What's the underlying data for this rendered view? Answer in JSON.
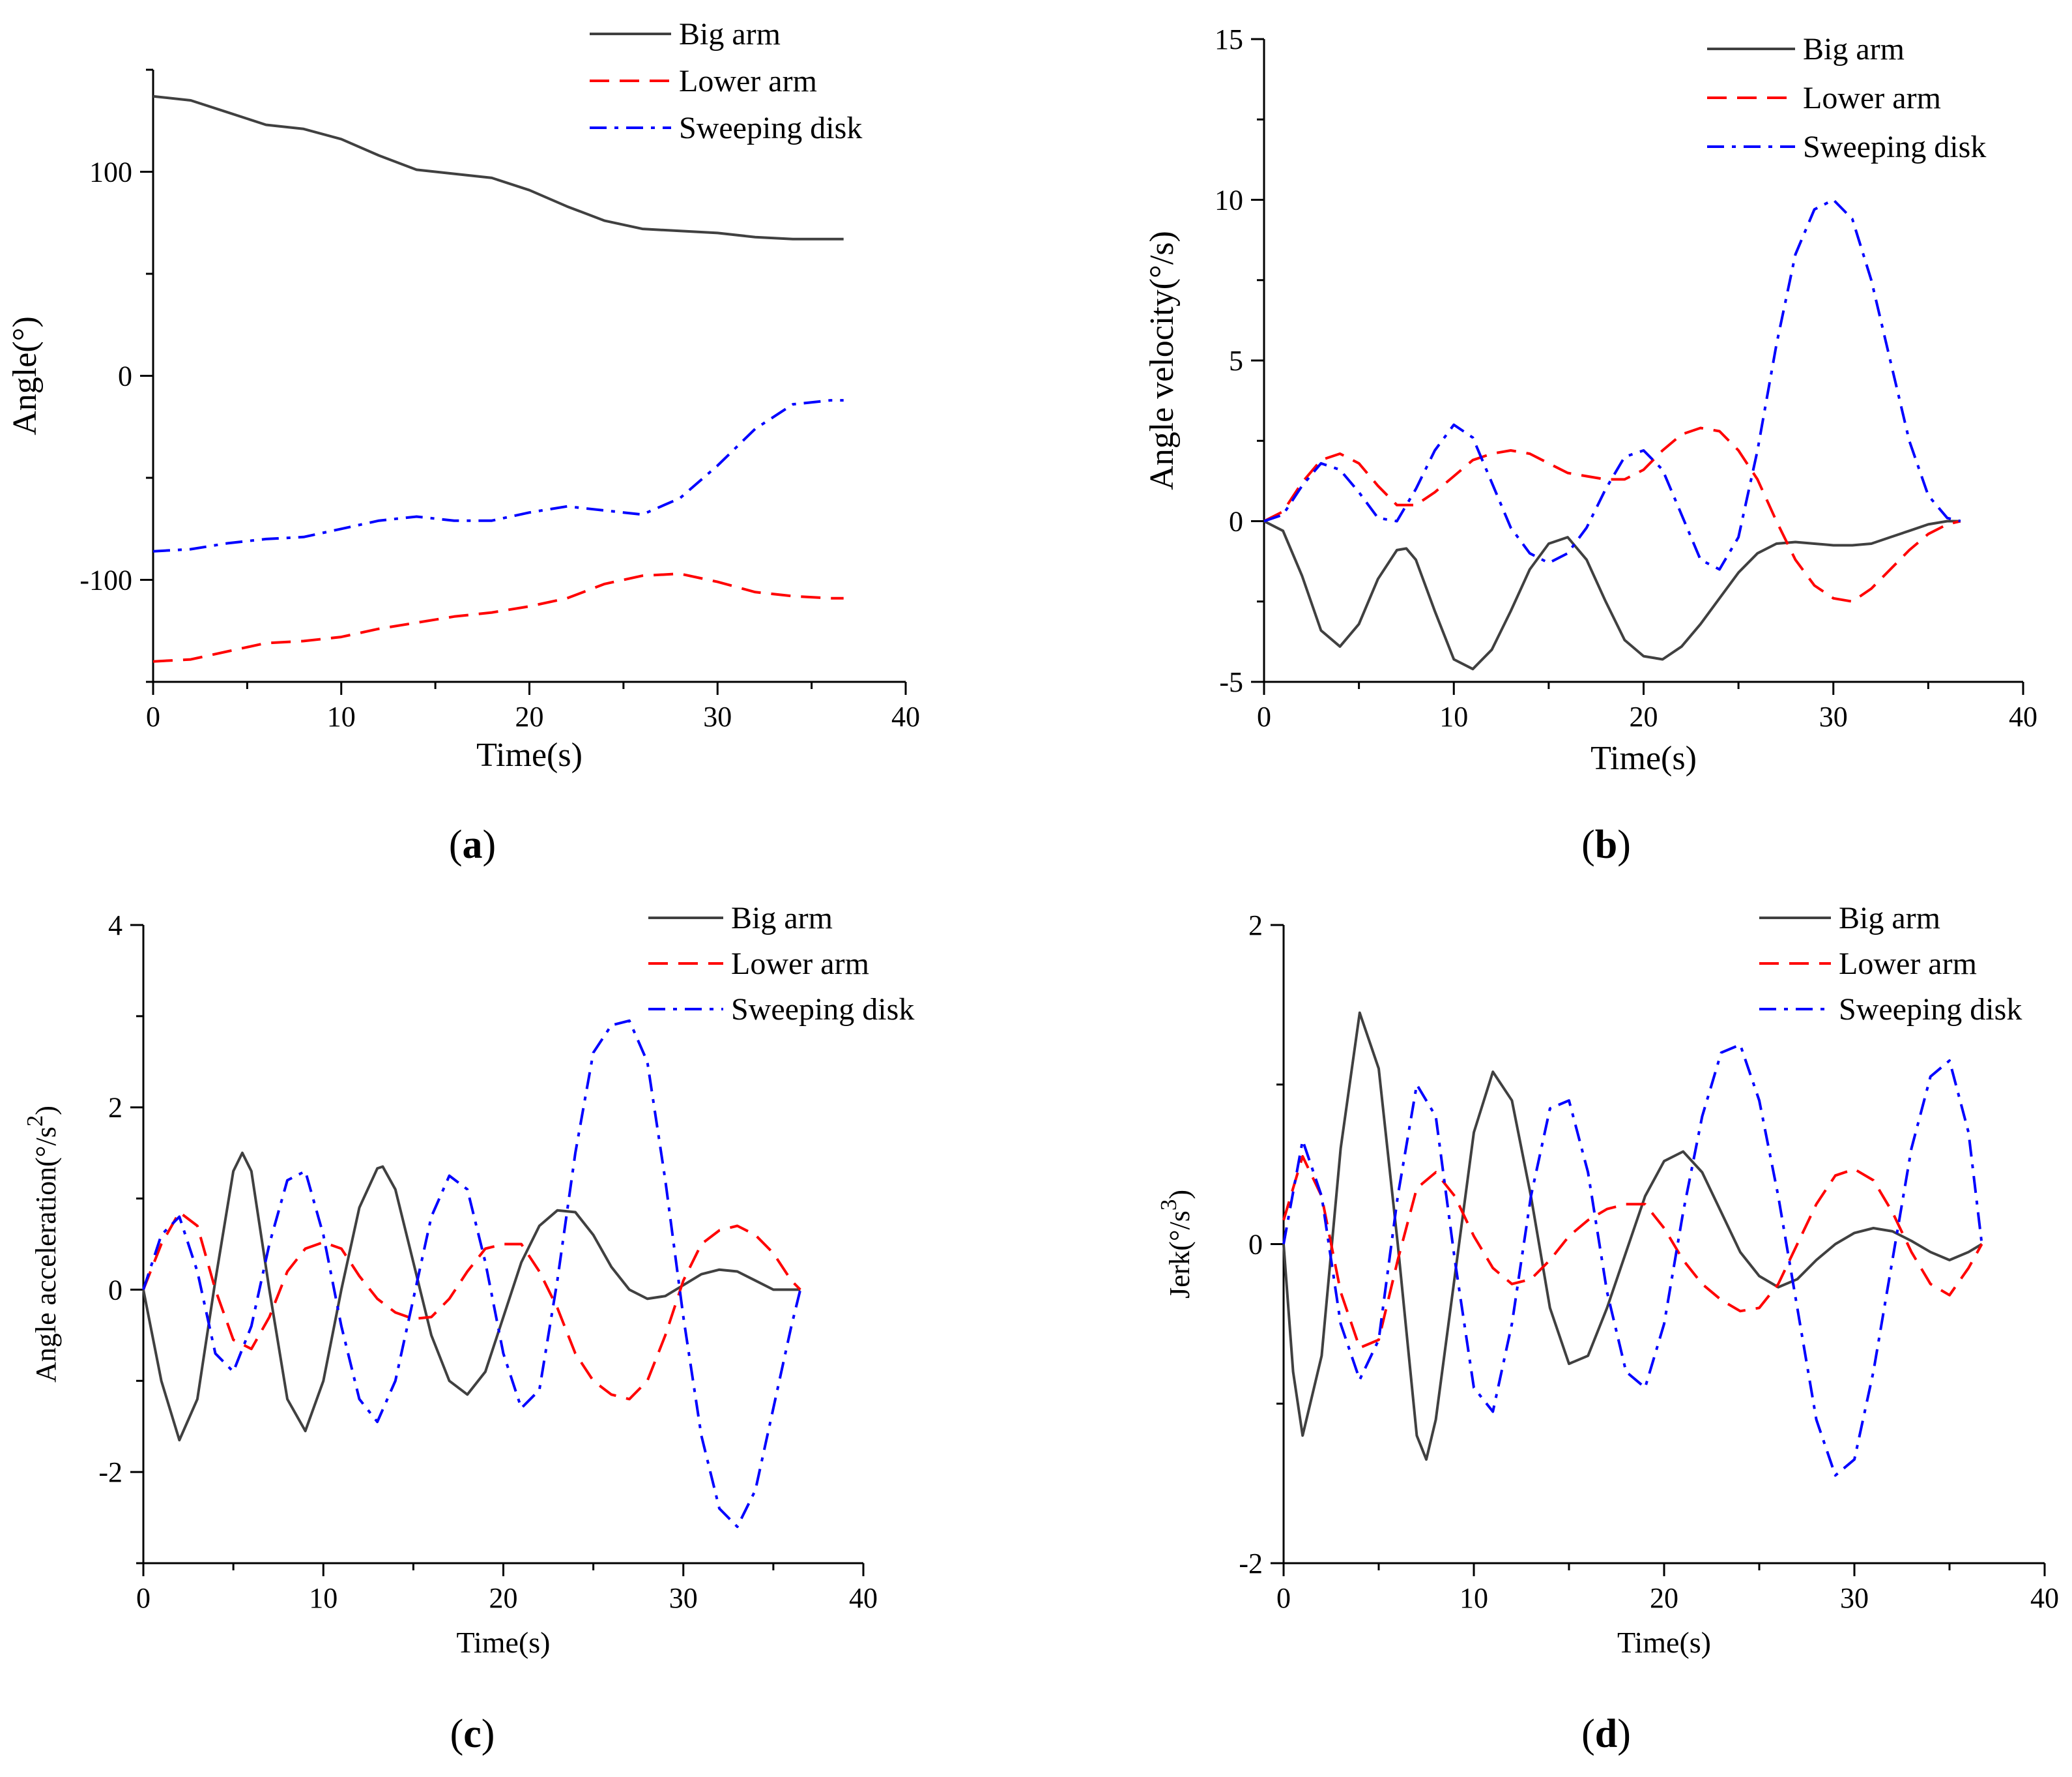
{
  "legend": {
    "big_arm": "Big arm",
    "lower_arm": "Lower arm",
    "sweeping_disk": "Sweeping disk"
  },
  "colors": {
    "big_arm": "#404040",
    "lower_arm": "#ff0000",
    "sweeping_disk": "#0000ff"
  },
  "captions": {
    "a": {
      "open": "(",
      "letter": "a",
      "close": ")"
    },
    "b": {
      "open": "(",
      "letter": "b",
      "close": ")"
    },
    "c": {
      "open": "(",
      "letter": "c",
      "close": ")"
    },
    "d": {
      "open": "(",
      "letter": "d",
      "close": ")"
    }
  },
  "chart_data": [
    {
      "id": "a",
      "type": "line",
      "title": "",
      "xlabel": "Time(s)",
      "ylabel": "Angle(°)",
      "xlim": [
        0,
        40
      ],
      "ylim": [
        -150,
        150
      ],
      "xticks": [
        0,
        10,
        20,
        30,
        40
      ],
      "yticks": [
        -100,
        0,
        100
      ],
      "ytick_labels": [
        "-100",
        "0",
        "100"
      ],
      "legend_position": "top-right",
      "series": [
        {
          "name": "Big arm",
          "style": "solid",
          "x": [
            0,
            2,
            4,
            6,
            8,
            10,
            12,
            14,
            16,
            18,
            20,
            22,
            24,
            26,
            28,
            30,
            32,
            34,
            36,
            36.7
          ],
          "y": [
            137,
            135,
            129,
            123,
            121,
            116,
            108,
            101,
            99,
            97,
            91,
            83,
            76,
            72,
            71,
            70,
            68,
            67,
            67,
            67
          ]
        },
        {
          "name": "Lower arm",
          "style": "dashed",
          "x": [
            0,
            2,
            4,
            6,
            8,
            10,
            12,
            14,
            16,
            18,
            20,
            22,
            24,
            26,
            28,
            30,
            32,
            34,
            36,
            36.7
          ],
          "y": [
            -140,
            -139,
            -135,
            -131,
            -130,
            -128,
            -124,
            -121,
            -118,
            -116,
            -113,
            -109,
            -102,
            -98,
            -97,
            -101,
            -106,
            -108,
            -109,
            -109
          ]
        },
        {
          "name": "Sweeping disk",
          "style": "dashdot",
          "x": [
            0,
            2,
            4,
            6,
            8,
            10,
            12,
            14,
            16,
            18,
            20,
            22,
            24,
            26,
            28,
            30,
            32,
            34,
            36,
            36.7
          ],
          "y": [
            -86,
            -85,
            -82,
            -80,
            -79,
            -75,
            -71,
            -69,
            -71,
            -71,
            -67,
            -64,
            -66,
            -68,
            -60,
            -44,
            -26,
            -14,
            -12,
            -12
          ]
        }
      ]
    },
    {
      "id": "b",
      "type": "line",
      "title": "",
      "xlabel": "Time(s)",
      "ylabel": "Angle velocity(°/s)",
      "xlim": [
        0,
        40
      ],
      "ylim": [
        -5,
        15
      ],
      "xticks": [
        0,
        10,
        20,
        30,
        40
      ],
      "yticks": [
        -5,
        0,
        5,
        10,
        15
      ],
      "ytick_labels": [
        "-5",
        "0",
        "5",
        "10",
        "15"
      ],
      "legend_position": "top-right",
      "series": [
        {
          "name": "Big arm",
          "style": "solid",
          "x": [
            0,
            1,
            2,
            3,
            4,
            5,
            6,
            7,
            7.5,
            8,
            9,
            10,
            11,
            12,
            13,
            14,
            15,
            16,
            17,
            18,
            19,
            20,
            21,
            22,
            23,
            24,
            25,
            26,
            27,
            28,
            29,
            30,
            31,
            32,
            33,
            34,
            35,
            36,
            36.7
          ],
          "y": [
            0,
            -0.3,
            -1.7,
            -3.4,
            -3.9,
            -3.2,
            -1.8,
            -0.9,
            -0.85,
            -1.2,
            -2.8,
            -4.3,
            -4.6,
            -4.0,
            -2.8,
            -1.5,
            -0.7,
            -0.5,
            -1.2,
            -2.5,
            -3.7,
            -4.2,
            -4.3,
            -3.9,
            -3.2,
            -2.4,
            -1.6,
            -1.0,
            -0.7,
            -0.65,
            -0.7,
            -0.75,
            -0.75,
            -0.7,
            -0.5,
            -0.3,
            -0.1,
            0,
            0
          ]
        },
        {
          "name": "Lower arm",
          "style": "dashed",
          "x": [
            0,
            1,
            2,
            3,
            4,
            5,
            6,
            7,
            8,
            9,
            10,
            11,
            12,
            13,
            14,
            15,
            16,
            17,
            18,
            19,
            20,
            21,
            22,
            23,
            24,
            25,
            26,
            27,
            28,
            29,
            30,
            31,
            32,
            33,
            34,
            35,
            36,
            36.7
          ],
          "y": [
            0,
            0.3,
            1.2,
            1.9,
            2.1,
            1.8,
            1.1,
            0.5,
            0.5,
            0.9,
            1.4,
            1.9,
            2.1,
            2.2,
            2.1,
            1.8,
            1.5,
            1.4,
            1.3,
            1.3,
            1.6,
            2.2,
            2.7,
            2.9,
            2.8,
            2.2,
            1.3,
            0.0,
            -1.2,
            -2.0,
            -2.4,
            -2.5,
            -2.1,
            -1.5,
            -0.9,
            -0.4,
            -0.1,
            0
          ]
        },
        {
          "name": "Sweeping disk",
          "style": "dashdot",
          "x": [
            0,
            1,
            2,
            3,
            4,
            5,
            6,
            7,
            8,
            9,
            10,
            11,
            12,
            13,
            14,
            15,
            16,
            17,
            18,
            19,
            20,
            21,
            22,
            23,
            24,
            25,
            26,
            27,
            28,
            29,
            30,
            31,
            32,
            33,
            34,
            35,
            36,
            36.7
          ],
          "y": [
            0,
            0.2,
            1.1,
            1.8,
            1.6,
            0.9,
            0.1,
            0.0,
            1.0,
            2.2,
            3.0,
            2.6,
            1.2,
            -0.2,
            -1.0,
            -1.3,
            -1.0,
            -0.2,
            1.0,
            2.0,
            2.2,
            1.6,
            0.2,
            -1.2,
            -1.5,
            -0.5,
            2.2,
            5.5,
            8.3,
            9.7,
            10.0,
            9.4,
            7.5,
            5.0,
            2.5,
            0.8,
            0.1,
            0
          ]
        }
      ]
    },
    {
      "id": "c",
      "type": "line",
      "title": "",
      "xlabel": "Time(s)",
      "ylabel": "Angle acceleration(°/s²)",
      "ylabel_parts": [
        "Angle acceleration(°/s",
        "2",
        ")"
      ],
      "xlim": [
        0,
        40
      ],
      "ylim": [
        -3,
        4
      ],
      "xticks": [
        0,
        10,
        20,
        30,
        40
      ],
      "yticks": [
        -2,
        0,
        2,
        4
      ],
      "ytick_labels": [
        "-2",
        "0",
        "2",
        "4"
      ],
      "legend_position": "top-right",
      "series": [
        {
          "name": "Big arm",
          "style": "solid",
          "x": [
            0,
            1,
            2,
            3,
            4,
            5,
            5.5,
            6,
            7,
            8,
            9,
            10,
            11,
            12,
            13,
            13.3,
            14,
            15,
            16,
            17,
            18,
            19,
            20,
            21,
            22,
            23,
            24,
            25,
            26,
            27,
            28,
            29,
            30,
            31,
            32,
            33,
            34,
            35,
            36,
            36.5
          ],
          "y": [
            0,
            -1.0,
            -1.65,
            -1.2,
            0.1,
            1.3,
            1.5,
            1.3,
            0.0,
            -1.2,
            -1.55,
            -1.0,
            0.0,
            0.9,
            1.33,
            1.35,
            1.1,
            0.3,
            -0.5,
            -1.0,
            -1.15,
            -0.9,
            -0.3,
            0.3,
            0.7,
            0.87,
            0.85,
            0.6,
            0.25,
            0.0,
            -0.1,
            -0.07,
            0.05,
            0.17,
            0.22,
            0.2,
            0.1,
            0.0,
            0,
            0
          ]
        },
        {
          "name": "Lower arm",
          "style": "dashed",
          "x": [
            0,
            1,
            2,
            3,
            4,
            5,
            6,
            7,
            8,
            9,
            10,
            11,
            12,
            13,
            14,
            15,
            16,
            17,
            18,
            19,
            20,
            21,
            22,
            23,
            24,
            25,
            26,
            27,
            28,
            29,
            30,
            31,
            32,
            33,
            34,
            35,
            36,
            36.5
          ],
          "y": [
            0,
            0.5,
            0.85,
            0.7,
            0.0,
            -0.55,
            -0.65,
            -0.3,
            0.2,
            0.45,
            0.52,
            0.45,
            0.15,
            -0.1,
            -0.25,
            -0.32,
            -0.3,
            -0.1,
            0.2,
            0.45,
            0.5,
            0.5,
            0.2,
            -0.2,
            -0.7,
            -1.0,
            -1.15,
            -1.2,
            -1.0,
            -0.5,
            0.1,
            0.5,
            0.65,
            0.7,
            0.6,
            0.4,
            0.1,
            0
          ]
        },
        {
          "name": "Sweeping disk",
          "style": "dashdot",
          "x": [
            0,
            1,
            2,
            3,
            4,
            5,
            6,
            7,
            8,
            9,
            10,
            11,
            12,
            13,
            14,
            15,
            16,
            17,
            18,
            19,
            20,
            21,
            22,
            23,
            24,
            25,
            26,
            27,
            28,
            29,
            30,
            31,
            32,
            33,
            34,
            35,
            36,
            36.5
          ],
          "y": [
            0,
            0.6,
            0.8,
            0.2,
            -0.7,
            -0.9,
            -0.4,
            0.5,
            1.2,
            1.3,
            0.6,
            -0.4,
            -1.2,
            -1.45,
            -1.0,
            -0.1,
            0.8,
            1.25,
            1.1,
            0.3,
            -0.7,
            -1.3,
            -1.1,
            0.1,
            1.5,
            2.6,
            2.9,
            2.95,
            2.5,
            1.2,
            -0.3,
            -1.6,
            -2.4,
            -2.6,
            -2.2,
            -1.3,
            -0.4,
            0
          ]
        }
      ]
    },
    {
      "id": "d",
      "type": "line",
      "title": "",
      "xlabel": "Time(s)",
      "ylabel": "Jerk(°/s³)",
      "ylabel_parts": [
        "Jerk(°/s",
        "3",
        ")"
      ],
      "xlim": [
        0,
        40
      ],
      "ylim": [
        -2,
        2
      ],
      "xticks": [
        0,
        10,
        20,
        30,
        40
      ],
      "yticks": [
        -2,
        0,
        2
      ],
      "ytick_labels": [
        "-2",
        "0",
        "2"
      ],
      "legend_position": "top-right",
      "series": [
        {
          "name": "Big arm",
          "style": "solid",
          "x": [
            0,
            0.5,
            1,
            2,
            3,
            4,
            5,
            6,
            7,
            7.5,
            8,
            9,
            10,
            11,
            12,
            13,
            14,
            15,
            16,
            17,
            18,
            19,
            20,
            21,
            22,
            23,
            24,
            25,
            26,
            27,
            28,
            29,
            30,
            31,
            32,
            33,
            34,
            35,
            36,
            36.7
          ],
          "y": [
            0,
            -0.8,
            -1.2,
            -0.7,
            0.6,
            1.45,
            1.1,
            0.0,
            -1.2,
            -1.35,
            -1.1,
            -0.2,
            0.7,
            1.08,
            0.9,
            0.3,
            -0.4,
            -0.75,
            -0.7,
            -0.4,
            -0.05,
            0.3,
            0.52,
            0.58,
            0.45,
            0.2,
            -0.05,
            -0.2,
            -0.27,
            -0.22,
            -0.1,
            0.0,
            0.07,
            0.1,
            0.08,
            0.02,
            -0.05,
            -0.1,
            -0.05,
            0
          ]
        },
        {
          "name": "Lower arm",
          "style": "dashed",
          "x": [
            0,
            1,
            2,
            3,
            4,
            5,
            6,
            7,
            8,
            9,
            10,
            11,
            12,
            13,
            14,
            15,
            16,
            17,
            18,
            19,
            20,
            21,
            22,
            23,
            24,
            25,
            26,
            27,
            28,
            29,
            30,
            31,
            32,
            33,
            34,
            35,
            36,
            36.7
          ],
          "y": [
            0.15,
            0.55,
            0.3,
            -0.3,
            -0.65,
            -0.6,
            -0.1,
            0.35,
            0.45,
            0.3,
            0.05,
            -0.15,
            -0.25,
            -0.22,
            -0.1,
            0.05,
            0.15,
            0.22,
            0.25,
            0.25,
            0.1,
            -0.1,
            -0.25,
            -0.35,
            -0.42,
            -0.4,
            -0.25,
            0.0,
            0.25,
            0.43,
            0.47,
            0.4,
            0.2,
            -0.05,
            -0.25,
            -0.32,
            -0.15,
            0
          ]
        },
        {
          "name": "Sweeping disk",
          "style": "dashdot",
          "x": [
            0,
            1,
            2,
            3,
            4,
            5,
            6,
            7,
            8,
            9,
            10,
            11,
            12,
            13,
            14,
            15,
            16,
            17,
            18,
            19,
            20,
            21,
            22,
            23,
            24,
            25,
            26,
            27,
            28,
            29,
            30,
            31,
            32,
            33,
            34,
            35,
            36,
            36.7
          ],
          "y": [
            0,
            0.65,
            0.3,
            -0.5,
            -0.85,
            -0.6,
            0.3,
            1.0,
            0.8,
            -0.1,
            -0.9,
            -1.05,
            -0.5,
            0.3,
            0.85,
            0.9,
            0.45,
            -0.3,
            -0.8,
            -0.9,
            -0.5,
            0.2,
            0.8,
            1.2,
            1.25,
            0.9,
            0.3,
            -0.4,
            -1.1,
            -1.45,
            -1.35,
            -0.8,
            -0.1,
            0.6,
            1.05,
            1.15,
            0.7,
            0
          ]
        }
      ]
    }
  ]
}
